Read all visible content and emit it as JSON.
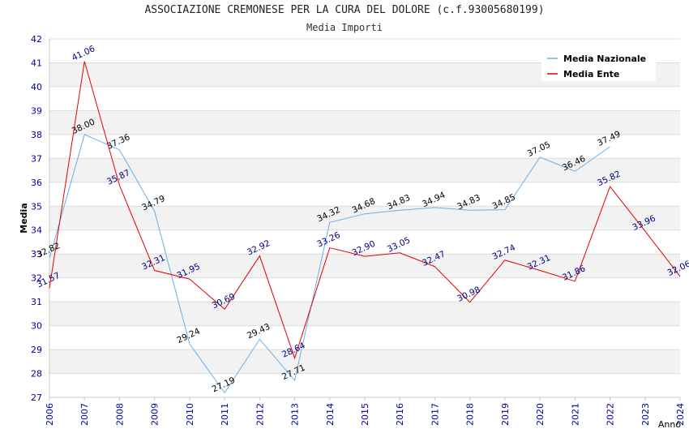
{
  "chart_data": {
    "type": "line",
    "title": "ASSOCIAZIONE CREMONESE PER LA CURA DEL DOLORE (c.f.93005680199)",
    "subtitle": "Media Importi",
    "xlabel": "Anno",
    "ylabel": "Media",
    "ylim": [
      27,
      42
    ],
    "yticks": [
      "27",
      "28",
      "29",
      "30",
      "31",
      "32",
      "33",
      "34",
      "35",
      "36",
      "37",
      "38",
      "39",
      "40",
      "41",
      "42"
    ],
    "categories": [
      "2006",
      "2007",
      "2008",
      "2009",
      "2010",
      "2011",
      "2012",
      "2013",
      "2014",
      "2015",
      "2016",
      "2017",
      "2018",
      "2019",
      "2020",
      "2021",
      "2022",
      "2023",
      "2024"
    ],
    "legend_position": "top-right",
    "series": [
      {
        "name": "Media Nazionale",
        "color": "#6aaee8",
        "label_color": "#000000",
        "values": [
          32.82,
          38.0,
          37.36,
          34.79,
          29.24,
          27.19,
          29.43,
          27.71,
          34.32,
          34.68,
          34.83,
          34.94,
          34.83,
          34.85,
          37.05,
          36.46,
          37.49,
          null,
          null
        ],
        "labels": [
          "32.82",
          "38.00",
          "37.36",
          "34.79",
          "29.24",
          "27.19",
          "29.43",
          "27.71",
          "34.32",
          "34.68",
          "34.83",
          "34.94",
          "34.83",
          "34.85",
          "37.05",
          "36.46",
          "37.49",
          "",
          ""
        ]
      },
      {
        "name": "Media Ente",
        "color": "#e00000",
        "label_color": "#000080",
        "values": [
          31.57,
          41.06,
          35.87,
          32.31,
          31.95,
          30.69,
          32.92,
          28.64,
          33.26,
          32.9,
          33.05,
          32.47,
          30.98,
          32.74,
          32.31,
          31.86,
          35.82,
          33.96,
          32.06
        ],
        "labels": [
          "31.57",
          "41.06",
          "35.87",
          "32.31",
          "31.95",
          "30.69",
          "32.92",
          "28.64",
          "33.26",
          "32.90",
          "33.05",
          "32.47",
          "30.98",
          "32.74",
          "32.31",
          "31.86",
          "35.82",
          "33.96",
          "32.06"
        ]
      }
    ]
  }
}
